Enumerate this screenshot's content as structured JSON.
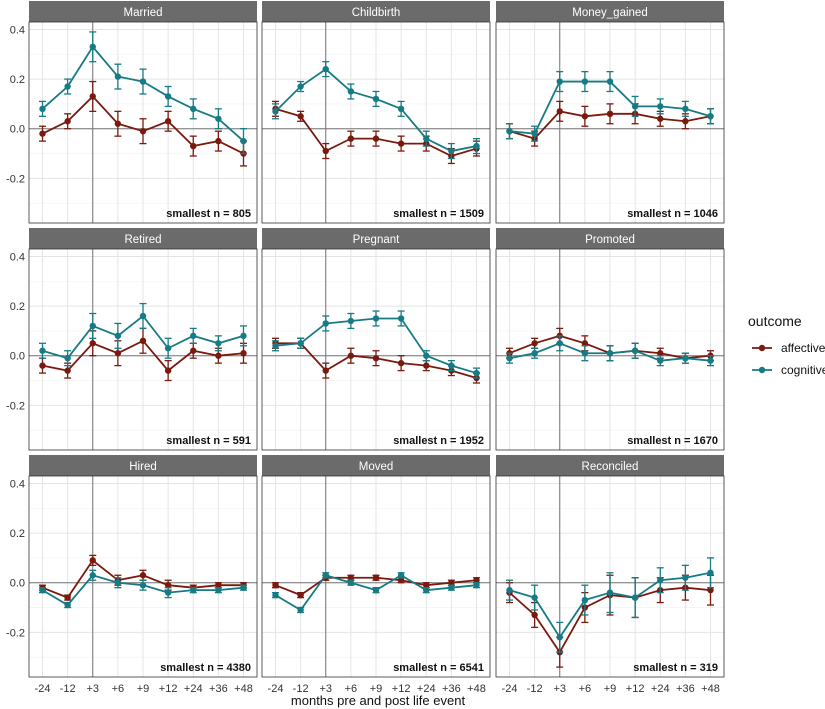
{
  "colors": {
    "affective": "#7a1a0e",
    "cognitive": "#167b84",
    "strip_bg": "#6b6b6b",
    "grid": "#e4e4e4",
    "panel_border": "#333333",
    "reference_line": "#777777"
  },
  "chart_data": {
    "type": "line",
    "layout": "facet-grid 3x3",
    "x_categories": [
      "-24",
      "-12",
      "+3",
      "+6",
      "+9",
      "+12",
      "+24",
      "+36",
      "+48"
    ],
    "xlabel": "months pre and post life event",
    "ylabel": "",
    "ylim": [
      -0.38,
      0.43
    ],
    "y_ticks": [
      0.4,
      0.2,
      0.0,
      -0.2
    ],
    "y_tick_labels": [
      "0.4",
      "0.2",
      "0.0",
      "-0.2"
    ],
    "event_marker_category": "+3",
    "legend": {
      "title": "outcome",
      "position": "right",
      "entries": [
        {
          "key": "affective",
          "label": "affective"
        },
        {
          "key": "cognitive",
          "label": "cognitive"
        }
      ]
    },
    "panels": [
      {
        "title": "Married",
        "n_label": "smallest n = 805",
        "series": [
          {
            "name": "affective",
            "values": [
              -0.02,
              0.03,
              0.13,
              0.02,
              -0.01,
              0.03,
              -0.07,
              -0.05,
              -0.1
            ],
            "err": [
              0.03,
              0.03,
              0.06,
              0.05,
              0.05,
              0.04,
              0.04,
              0.04,
              0.05
            ]
          },
          {
            "name": "cognitive",
            "values": [
              0.08,
              0.17,
              0.33,
              0.21,
              0.19,
              0.13,
              0.08,
              0.04,
              -0.05
            ],
            "err": [
              0.03,
              0.03,
              0.06,
              0.05,
              0.05,
              0.04,
              0.04,
              0.04,
              0.05
            ]
          }
        ]
      },
      {
        "title": "Childbirth",
        "n_label": "smallest n = 1509",
        "series": [
          {
            "name": "affective",
            "values": [
              0.08,
              0.05,
              -0.09,
              -0.04,
              -0.04,
              -0.06,
              -0.06,
              -0.11,
              -0.08
            ],
            "err": [
              0.03,
              0.02,
              0.03,
              0.03,
              0.03,
              0.03,
              0.03,
              0.03,
              0.03
            ]
          },
          {
            "name": "cognitive",
            "values": [
              0.07,
              0.17,
              0.24,
              0.15,
              0.12,
              0.08,
              -0.04,
              -0.09,
              -0.07
            ],
            "err": [
              0.03,
              0.02,
              0.03,
              0.03,
              0.03,
              0.03,
              0.03,
              0.03,
              0.03
            ]
          }
        ]
      },
      {
        "title": "Money_gained",
        "n_label": "smallest n = 1046",
        "series": [
          {
            "name": "affective",
            "values": [
              -0.01,
              -0.04,
              0.07,
              0.05,
              0.06,
              0.06,
              0.04,
              0.03,
              0.05
            ],
            "err": [
              0.03,
              0.03,
              0.04,
              0.04,
              0.04,
              0.04,
              0.03,
              0.03,
              0.03
            ]
          },
          {
            "name": "cognitive",
            "values": [
              -0.01,
              -0.02,
              0.19,
              0.19,
              0.19,
              0.09,
              0.09,
              0.08,
              0.05
            ],
            "err": [
              0.03,
              0.03,
              0.04,
              0.04,
              0.04,
              0.04,
              0.03,
              0.03,
              0.03
            ]
          }
        ]
      },
      {
        "title": "Retired",
        "n_label": "smallest n = 591",
        "series": [
          {
            "name": "affective",
            "values": [
              -0.04,
              -0.06,
              0.05,
              0.01,
              0.06,
              -0.06,
              0.02,
              0.0,
              0.01
            ],
            "err": [
              0.03,
              0.03,
              0.05,
              0.05,
              0.05,
              0.04,
              0.03,
              0.03,
              0.04
            ]
          },
          {
            "name": "cognitive",
            "values": [
              0.02,
              -0.01,
              0.12,
              0.08,
              0.16,
              0.03,
              0.08,
              0.05,
              0.08
            ],
            "err": [
              0.03,
              0.03,
              0.05,
              0.05,
              0.05,
              0.04,
              0.03,
              0.03,
              0.04
            ]
          }
        ]
      },
      {
        "title": "Pregnant",
        "n_label": "smallest n = 1952",
        "series": [
          {
            "name": "affective",
            "values": [
              0.05,
              0.05,
              -0.06,
              0.0,
              -0.01,
              -0.03,
              -0.04,
              -0.06,
              -0.09
            ],
            "err": [
              0.02,
              0.02,
              0.03,
              0.03,
              0.03,
              0.03,
              0.02,
              0.02,
              0.02
            ]
          },
          {
            "name": "cognitive",
            "values": [
              0.04,
              0.05,
              0.13,
              0.14,
              0.15,
              0.15,
              0.0,
              -0.04,
              -0.07
            ],
            "err": [
              0.02,
              0.02,
              0.03,
              0.03,
              0.03,
              0.03,
              0.02,
              0.02,
              0.02
            ]
          }
        ]
      },
      {
        "title": "Promoted",
        "n_label": "smallest n = 1670",
        "series": [
          {
            "name": "affective",
            "values": [
              0.01,
              0.05,
              0.08,
              0.05,
              0.01,
              0.02,
              0.01,
              -0.01,
              0.0
            ],
            "err": [
              0.02,
              0.02,
              0.03,
              0.03,
              0.03,
              0.03,
              0.02,
              0.02,
              0.02
            ]
          },
          {
            "name": "cognitive",
            "values": [
              -0.01,
              0.01,
              0.05,
              0.01,
              0.01,
              0.02,
              -0.02,
              -0.01,
              -0.02
            ],
            "err": [
              0.02,
              0.02,
              0.03,
              0.03,
              0.03,
              0.03,
              0.02,
              0.02,
              0.02
            ]
          }
        ]
      },
      {
        "title": "Hired",
        "n_label": "smallest n = 4380",
        "series": [
          {
            "name": "affective",
            "values": [
              -0.02,
              -0.06,
              0.09,
              0.01,
              0.03,
              -0.01,
              -0.02,
              -0.01,
              -0.01
            ],
            "err": [
              0.01,
              0.01,
              0.02,
              0.02,
              0.02,
              0.02,
              0.01,
              0.01,
              0.01
            ]
          },
          {
            "name": "cognitive",
            "values": [
              -0.03,
              -0.09,
              0.03,
              0.0,
              -0.01,
              -0.04,
              -0.03,
              -0.03,
              -0.02
            ],
            "err": [
              0.01,
              0.01,
              0.02,
              0.02,
              0.02,
              0.02,
              0.01,
              0.01,
              0.01
            ]
          }
        ]
      },
      {
        "title": "Moved",
        "n_label": "smallest n = 6541",
        "series": [
          {
            "name": "affective",
            "values": [
              -0.01,
              -0.05,
              0.02,
              0.02,
              0.02,
              0.01,
              -0.01,
              0.0,
              0.01
            ],
            "err": [
              0.01,
              0.01,
              0.01,
              0.01,
              0.01,
              0.01,
              0.01,
              0.01,
              0.01
            ]
          },
          {
            "name": "cognitive",
            "values": [
              -0.05,
              -0.11,
              0.03,
              0.0,
              -0.03,
              0.03,
              -0.03,
              -0.02,
              -0.01
            ],
            "err": [
              0.01,
              0.01,
              0.01,
              0.01,
              0.01,
              0.01,
              0.01,
              0.01,
              0.01
            ]
          }
        ]
      },
      {
        "title": "Reconciled",
        "n_label": "smallest n = 319",
        "series": [
          {
            "name": "affective",
            "values": [
              -0.04,
              -0.13,
              -0.28,
              -0.1,
              -0.05,
              -0.06,
              -0.03,
              -0.02,
              -0.03
            ],
            "err": [
              0.04,
              0.05,
              0.06,
              0.06,
              0.08,
              0.08,
              0.05,
              0.05,
              0.06
            ]
          },
          {
            "name": "cognitive",
            "values": [
              -0.03,
              -0.06,
              -0.22,
              -0.07,
              -0.04,
              -0.06,
              0.01,
              0.02,
              0.04
            ],
            "err": [
              0.04,
              0.05,
              0.06,
              0.06,
              0.08,
              0.08,
              0.05,
              0.05,
              0.06
            ]
          }
        ]
      }
    ]
  }
}
